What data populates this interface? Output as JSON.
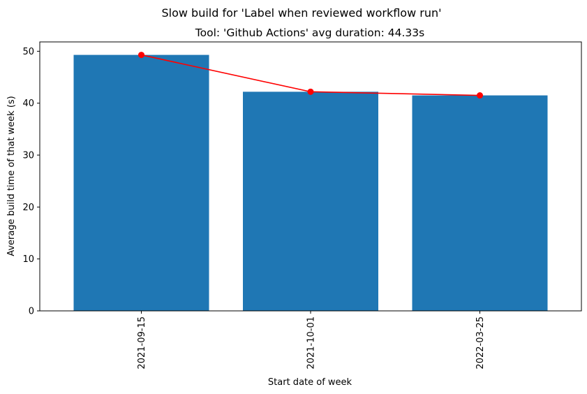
{
  "chart_data": {
    "type": "bar",
    "suptitle": "Slow build for 'Label when reviewed workflow run'",
    "title": "Tool: 'Github Actions' avg duration: 44.33s",
    "xlabel": "Start date of week",
    "ylabel": "Average build time of that week (s)",
    "categories": [
      "2021-09-15",
      "2021-10-01",
      "2022-03-25"
    ],
    "series": [
      {
        "type": "bar",
        "values": [
          49.3,
          42.2,
          41.5
        ],
        "color": "#1f77b4"
      },
      {
        "type": "line",
        "values": [
          49.3,
          42.2,
          41.5
        ],
        "color": "#ff0000",
        "marker": "circle"
      }
    ],
    "ylim": [
      0,
      51.8
    ],
    "yticks": [
      0,
      10,
      20,
      30,
      40,
      50
    ],
    "grid": false,
    "xtick_rotation": "vertical"
  }
}
